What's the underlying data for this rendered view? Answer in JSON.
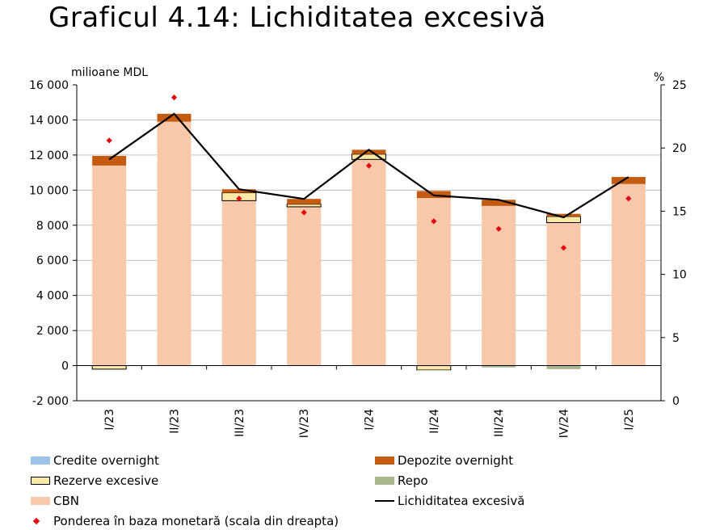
{
  "title": "Graficul 4.14: Lichiditatea excesivă",
  "chart_data": {
    "type": "bar",
    "title": "Graficul 4.14: Lichiditatea excesivă",
    "ylabel_left": "milioane MDL",
    "ylabel_right": "%",
    "ylim_left": [
      -2000,
      16000
    ],
    "ylim_right": [
      0,
      25
    ],
    "yticks_left": [
      "16 000",
      "14 000",
      "12 000",
      "10 000",
      "8 000",
      "6 000",
      "4 000",
      "2 000",
      "0",
      "-2 000"
    ],
    "yticks_right": [
      "25",
      "20",
      "15",
      "10",
      "5",
      "0"
    ],
    "grid": true,
    "legend_position": "bottom",
    "categories": [
      "I/23",
      "II/23",
      "III/23",
      "IV/23",
      "I/24",
      "II/24",
      "III/24",
      "IV/24",
      "I/25"
    ],
    "series": [
      {
        "name": "CBN",
        "kind": "stacked-bar",
        "color": "#f7c9aa",
        "values": [
          11400,
          13900,
          9400,
          9050,
          11750,
          9550,
          9100,
          8150,
          10350
        ]
      },
      {
        "name": "Rezerve excesive",
        "kind": "stacked-bar",
        "color": "#fde9a6",
        "values": [
          -200,
          0,
          450,
          150,
          300,
          -250,
          0,
          350,
          0
        ]
      },
      {
        "name": "Depozite overnight",
        "kind": "stacked-bar",
        "color": "#c55a11",
        "values": [
          550,
          450,
          200,
          300,
          250,
          400,
          350,
          150,
          400
        ]
      },
      {
        "name": "Repo",
        "kind": "stacked-bar",
        "color": "#a9b88a",
        "values": [
          0,
          0,
          0,
          0,
          0,
          -30,
          -100,
          -200,
          0
        ]
      },
      {
        "name": "Credite overnight",
        "kind": "stacked-bar",
        "color": "#9dc3e6",
        "values": [
          0,
          0,
          0,
          0,
          0,
          0,
          0,
          0,
          0
        ]
      },
      {
        "name": "Lichiditatea excesivă",
        "kind": "line",
        "axis": "left",
        "color": "#000000",
        "values": [
          11750,
          14350,
          10050,
          9500,
          12300,
          9700,
          9450,
          8450,
          10750
        ]
      },
      {
        "name": "Ponderea în baza monetară (scala din dreapta)",
        "kind": "marker",
        "axis": "right",
        "color": "#e30613",
        "values": [
          20.6,
          24.0,
          16.0,
          14.9,
          18.6,
          14.2,
          13.6,
          12.1,
          16.0
        ]
      }
    ]
  },
  "legend": [
    {
      "label": "Credite overnight",
      "type": "swatch",
      "color": "#9dc3e6"
    },
    {
      "label": "Depozite overnight",
      "type": "swatch",
      "color": "#c55a11"
    },
    {
      "label": "Rezerve excesive",
      "type": "swatch",
      "color": "#fde9a6"
    },
    {
      "label": "Repo",
      "type": "swatch",
      "color": "#a9b88a"
    },
    {
      "label": "CBN",
      "type": "swatch",
      "color": "#f7c9aa"
    },
    {
      "label": "Lichiditatea excesivă",
      "type": "line",
      "color": "#000000"
    },
    {
      "label": "Ponderea în baza monetară (scala din dreapta)",
      "type": "marker",
      "color": "#e30613"
    }
  ]
}
